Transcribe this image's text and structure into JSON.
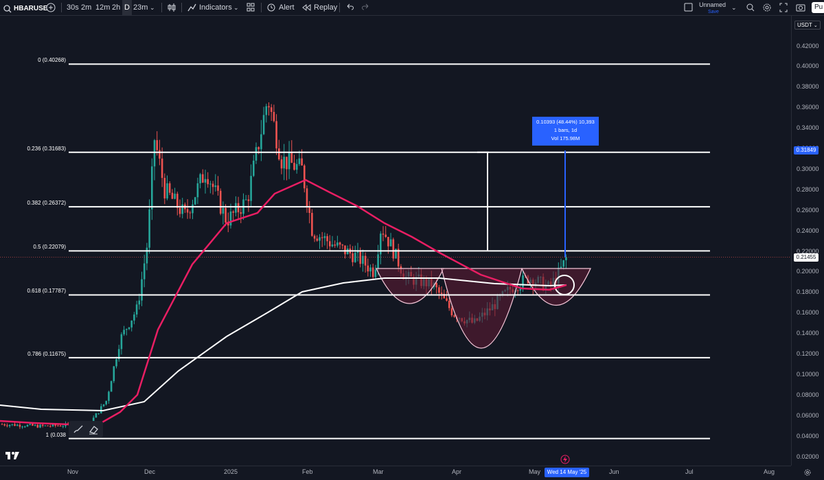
{
  "toolbar": {
    "symbol": "HBARUSE",
    "intervals": [
      "30s",
      "2m",
      "12m",
      "2h",
      "D",
      "23m"
    ],
    "indicators_label": "Indicators",
    "alert_label": "Alert",
    "replay_label": "Replay",
    "layout_name": "Unnamed",
    "layout_status": "Save",
    "publish_label": "Pu"
  },
  "currency": "USDT",
  "price_ticks": [
    "0.42000",
    "0.40000",
    "0.38000",
    "0.36000",
    "0.34000",
    "0.32000",
    "0.30000",
    "0.28000",
    "0.26000",
    "0.24000",
    "0.22000",
    "0.20000",
    "0.18000",
    "0.16000",
    "0.14000",
    "0.12000",
    "0.10000",
    "0.08000",
    "0.06000",
    "0.04000",
    "0.02000"
  ],
  "price_label_target": "0.31849",
  "price_label_last": "0.21455",
  "fib_levels": [
    {
      "label": "0 (0.40268)",
      "value": 0.40268
    },
    {
      "label": "0.236 (0.31683)",
      "value": 0.31683
    },
    {
      "label": "0.382 (0.26372)",
      "value": 0.26372
    },
    {
      "label": "0.5 (0.22079)",
      "value": 0.22079
    },
    {
      "label": "0.618 (0.17787)",
      "value": 0.17787
    },
    {
      "label": "0.786 (0.11675)",
      "value": 0.11675
    },
    {
      "label": "1 (0.038",
      "value": 0.038
    }
  ],
  "measure": {
    "line1": "0.10393 (48.44%) 10,393",
    "line2": "1 bars, 1d",
    "line3": "Vol 175.98M"
  },
  "time_ticks": [
    "Nov",
    "Dec",
    "2025",
    "Feb",
    "Mar",
    "Apr",
    "May",
    "Jun",
    "Jul",
    "Aug"
  ],
  "date_pill": "Wed 14 May '25",
  "colors": {
    "background": "#131722",
    "ma_fast": "#e91e63",
    "ma_slow": "#ffffff",
    "up": "#26a69a",
    "down": "#ef5350",
    "accent": "#2962ff",
    "cup": "#5b1a33"
  },
  "icons": [
    "plus-circle-icon",
    "candles-icon",
    "indicators-icon",
    "templates-icon",
    "alert-icon",
    "replay-icon",
    "undo-icon",
    "redo-icon",
    "fullscreen-box-icon",
    "chevron-down-icon",
    "search-icon",
    "settings-icon",
    "camera-icon",
    "fullscreen-icon",
    "brush-icon",
    "eraser-icon",
    "tradingview-logo-icon",
    "lightning-icon",
    "gear-icon"
  ]
}
